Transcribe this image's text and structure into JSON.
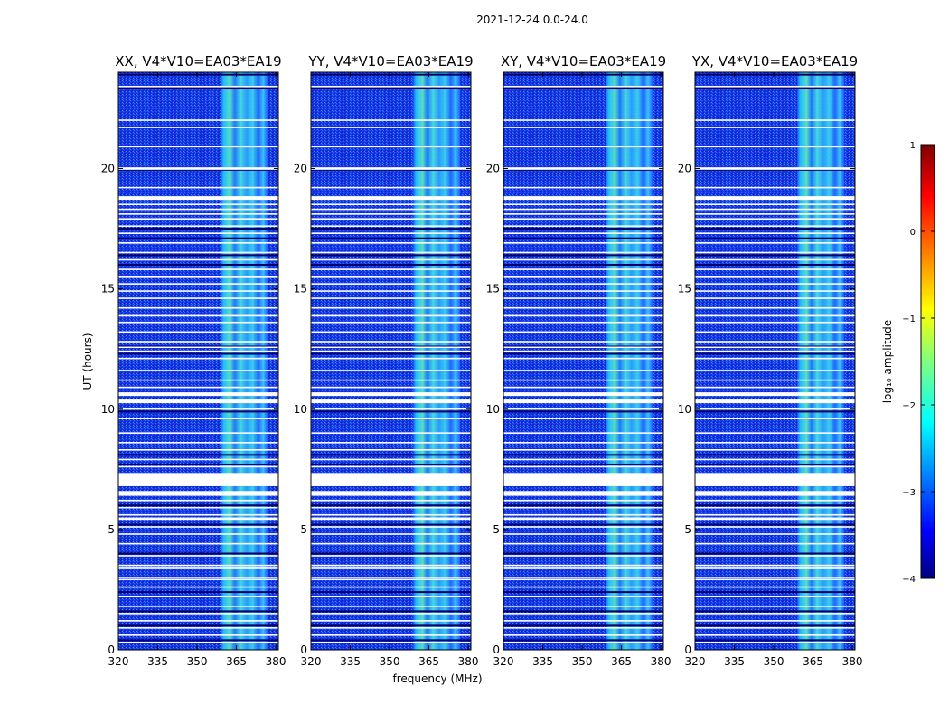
{
  "figure_title": "2021-12-24 0.0-24.0",
  "chart_data": {
    "type": "heatmap",
    "panels": [
      {
        "title": "XX, V4*V10=EA03*EA19",
        "polarization": "XX"
      },
      {
        "title": "YY, V4*V10=EA03*EA19",
        "polarization": "YY"
      },
      {
        "title": "XY, V4*V10=EA03*EA19",
        "polarization": "XY"
      },
      {
        "title": "YX, V4*V10=EA03*EA19",
        "polarization": "YX"
      }
    ],
    "xlabel": "frequency (MHz)",
    "ylabel": "UT (hours)",
    "xlim": [
      320,
      381
    ],
    "ylim": [
      0,
      24
    ],
    "xticks": [
      "320",
      "335",
      "350",
      "365",
      "380"
    ],
    "yticks": [
      "0",
      "5",
      "10",
      "15",
      "20"
    ],
    "xtick_values": [
      320,
      335,
      350,
      365,
      380
    ],
    "ytick_values": [
      0,
      5,
      10,
      15,
      20
    ],
    "colorbar": {
      "label": "log₁₀ amplitude",
      "range": [
        -4,
        1
      ],
      "ticks": [
        "1",
        "0",
        "−1",
        "−2",
        "−3",
        "−4"
      ],
      "tick_values": [
        1,
        0,
        -1,
        -2,
        -3,
        -4
      ],
      "colormap": "jet"
    },
    "bright_band_mhz": [
      359,
      377
    ],
    "background_level": -3.0,
    "band_level": -2.0,
    "flagged_gaps_ut": [
      [
        6.4,
        6.6
      ],
      [
        6.8,
        7.35
      ],
      [
        5.4,
        5.5
      ],
      [
        10.25,
        10.4
      ],
      [
        10.55,
        10.7
      ],
      [
        12.55,
        12.6
      ],
      [
        18.7,
        18.85
      ],
      [
        19.95,
        20.05
      ],
      [
        2.9,
        2.95
      ],
      [
        3.35,
        3.45
      ],
      [
        13.85,
        13.95
      ],
      [
        15.45,
        15.55
      ]
    ],
    "white_lines_ut": [
      0.3,
      0.6,
      0.9,
      1.2,
      1.5,
      1.8,
      2.2,
      2.6,
      3.0,
      3.5,
      3.9,
      4.4,
      4.8,
      5.1,
      5.6,
      5.9,
      6.2,
      7.6,
      7.9,
      8.3,
      8.6,
      9.0,
      9.6,
      10.0,
      10.9,
      11.2,
      11.6,
      12.1,
      12.4,
      12.8,
      13.2,
      13.6,
      14.2,
      14.6,
      14.9,
      15.2,
      15.8,
      16.2,
      16.5,
      16.9,
      17.3,
      17.6,
      17.9,
      18.1,
      18.3,
      18.5,
      19.2,
      20.9,
      21.7,
      22.0,
      23.4
    ],
    "dark_lines_ut": [
      0.4,
      1.0,
      1.6,
      2.4,
      4.0,
      5.2,
      6.0,
      7.7,
      8.1,
      9.9,
      12.3,
      12.6,
      16.0,
      16.4,
      17.1,
      17.5,
      19.95,
      23.35,
      23.9
    ]
  }
}
